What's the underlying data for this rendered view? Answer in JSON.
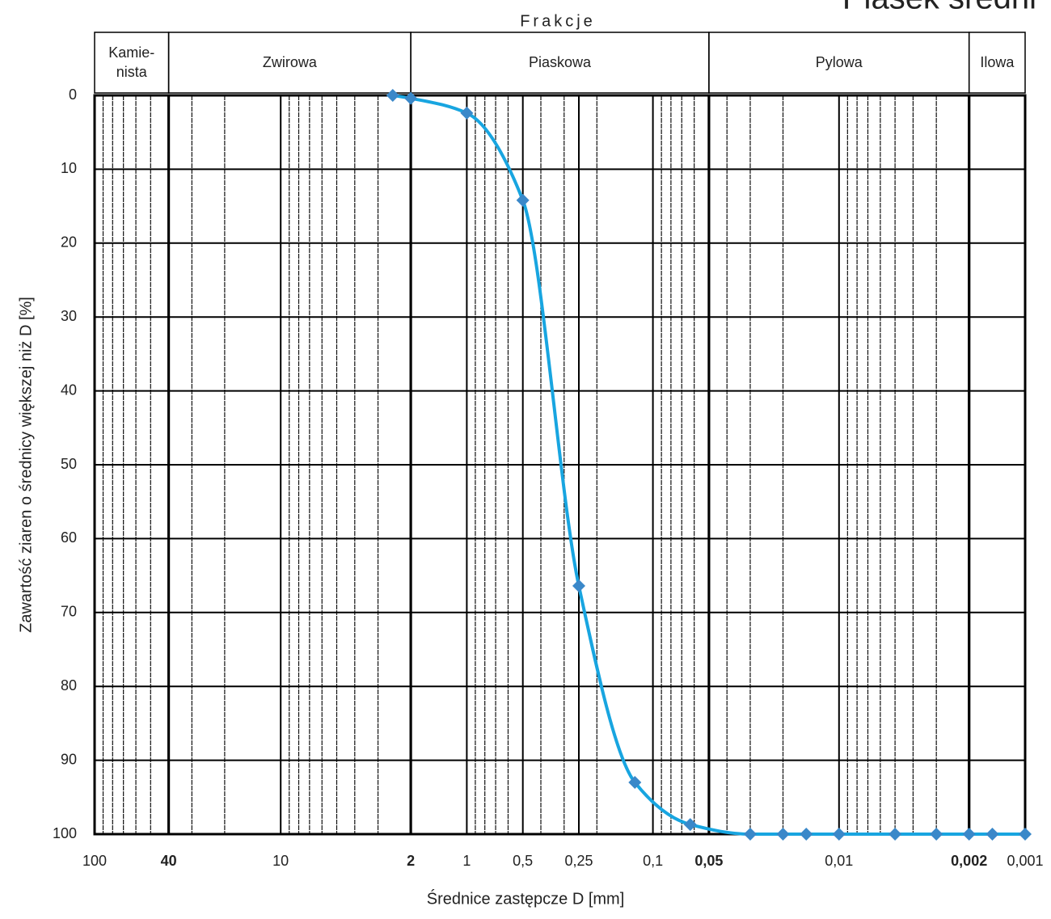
{
  "chart_data": {
    "type": "line",
    "title": "Piasek średni",
    "header_title": "Frakcje",
    "fractions": [
      {
        "label": [
          "Kamie-",
          "nista"
        ],
        "from": 100,
        "to": 40
      },
      {
        "label": [
          "Zwirowa"
        ],
        "from": 40,
        "to": 2
      },
      {
        "label": [
          "Piaskowa"
        ],
        "from": 2,
        "to": 0.05
      },
      {
        "label": [
          "Pylowa"
        ],
        "from": 0.05,
        "to": 0.002
      },
      {
        "label": [
          "Ilowa"
        ],
        "from": 0.002,
        "to": 0.001
      }
    ],
    "x_label": "Średnice zastępcze D [mm]",
    "y_label": "Zawartość ziaren o średnicy większej niż D [%]",
    "xscale": "log",
    "xlim": [
      100,
      0.001
    ],
    "ylim": [
      0,
      100
    ],
    "y_inverted": true,
    "xticks": [
      100,
      {
        "value": 40,
        "label": "40",
        "bold": true
      },
      10,
      {
        "value": 2,
        "label": "2",
        "bold": true
      },
      1,
      {
        "value": 0.5,
        "label": "0,5"
      },
      {
        "value": 0.25,
        "label": "0,25"
      },
      {
        "value": 0.1,
        "label": "0,1"
      },
      {
        "value": 0.05,
        "label": "0,05",
        "bold": true
      },
      {
        "value": 0.01,
        "label": "0,01"
      },
      {
        "value": 0.002,
        "label": "0,002",
        "bold": true
      },
      {
        "value": 0.001,
        "label": "0,001"
      }
    ],
    "yticks": [
      0,
      10,
      20,
      30,
      40,
      50,
      60,
      70,
      80,
      90,
      100
    ],
    "grid": true,
    "series": [
      {
        "color": "#18a5e0",
        "marker_color": "#3a88c9",
        "x": [
          2.5,
          2,
          1,
          0.5,
          0.25,
          0.125,
          0.063,
          0.03,
          0.02,
          0.015,
          0.01,
          0.005,
          0.003,
          0.002,
          0.0015,
          0.001
        ],
        "values": [
          0,
          0.4,
          2.4,
          14.2,
          66.4,
          93,
          98.7,
          100,
          100,
          100,
          100,
          100,
          100,
          100,
          100,
          100
        ]
      }
    ]
  }
}
